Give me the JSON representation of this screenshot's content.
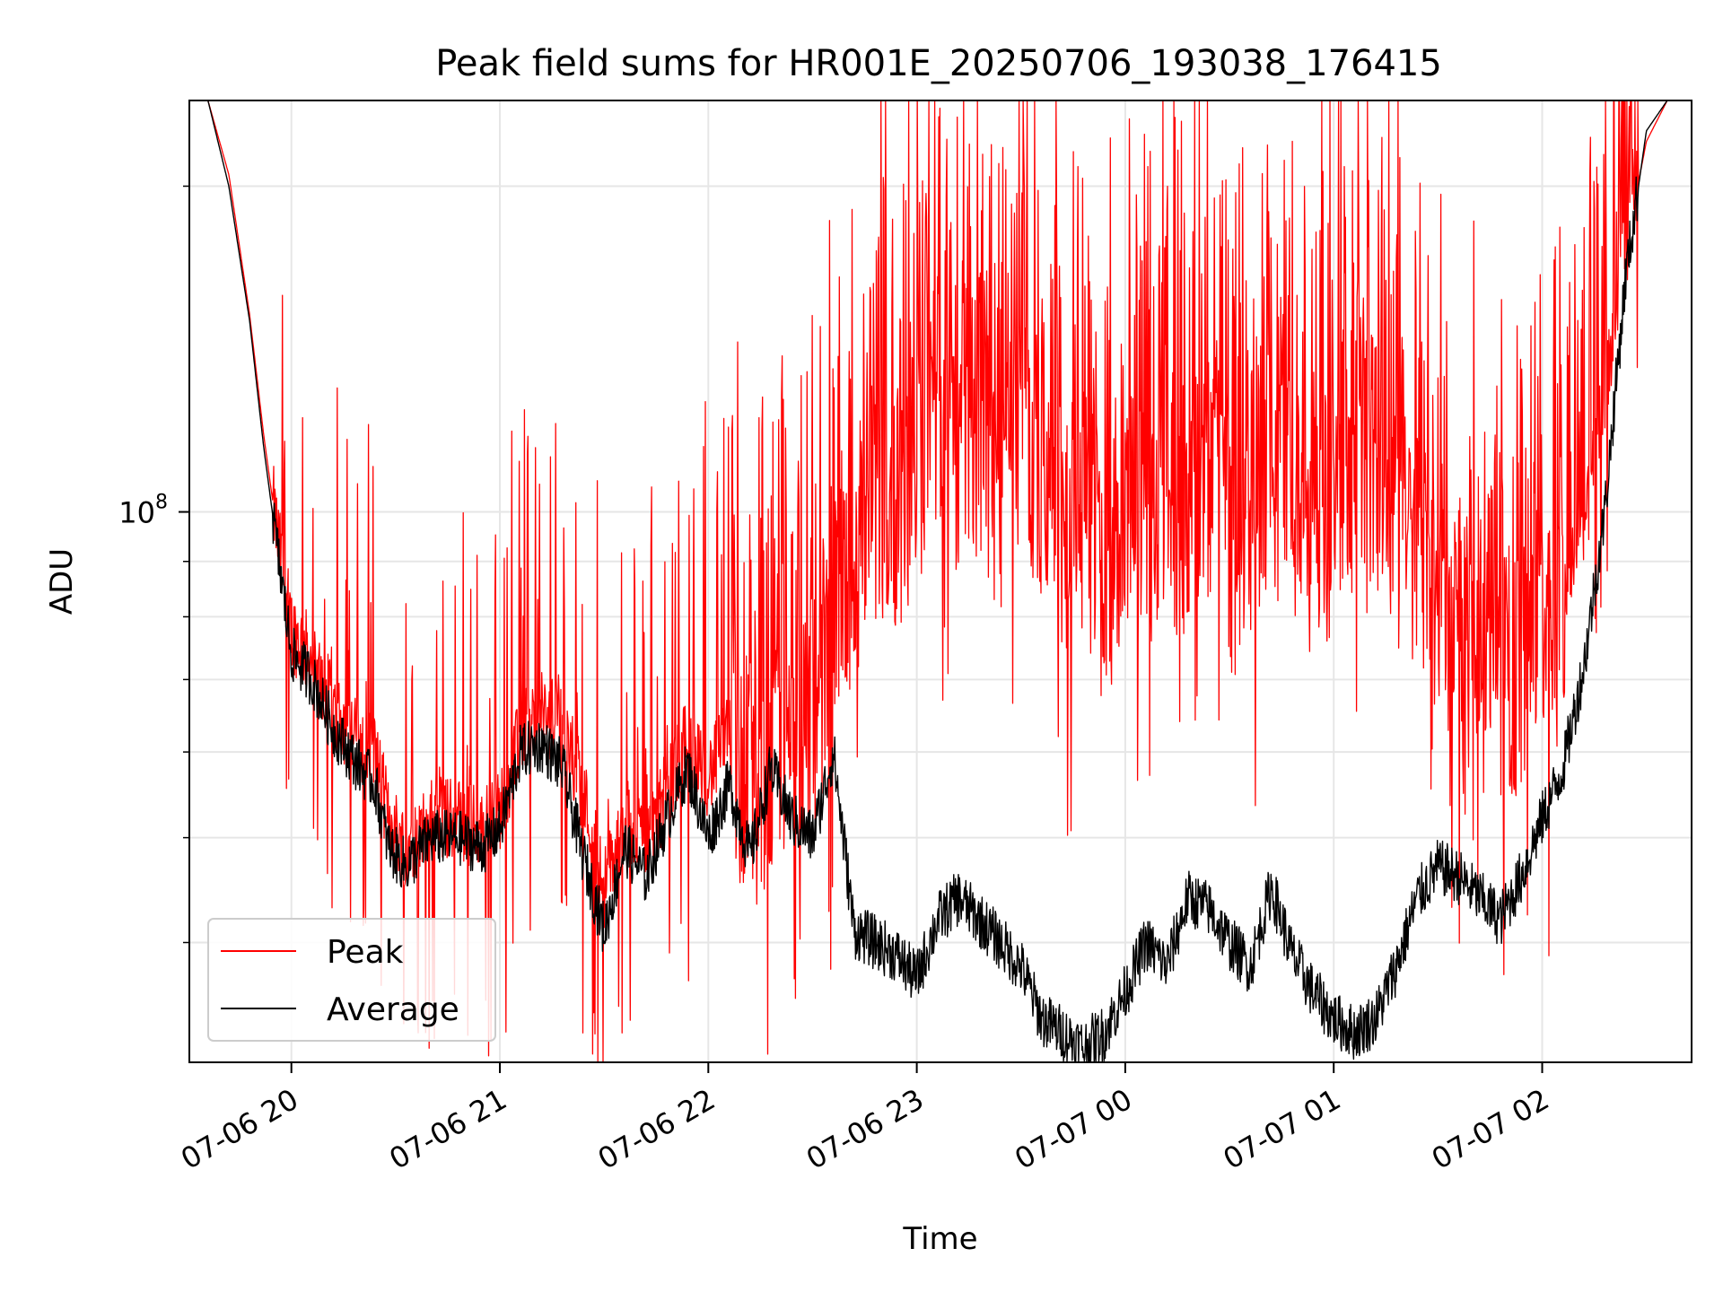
{
  "chart_data": {
    "type": "line",
    "title": "Peak field sums for HR001E_20250706_193038_176415",
    "xlabel": "Time",
    "ylabel": "ADU",
    "x_range": [
      "2025-07-06T19:30:38",
      "2025-07-07T02:43:00"
    ],
    "x_ticks": [
      "07-06 20",
      "07-06 21",
      "07-06 22",
      "07-06 23",
      "07-07 00",
      "07-07 01",
      "07-07 02"
    ],
    "y_scale": "log",
    "y_range": [
      31000000,
      240000000
    ],
    "y_major_ticks": [
      {
        "value": 100000000,
        "label": "10",
        "exp": "8"
      }
    ],
    "y_minor_ticks": [
      40000000,
      50000000,
      60000000,
      70000000,
      80000000,
      90000000,
      200000000
    ],
    "grid": true,
    "legend": "lower-left",
    "series": [
      {
        "name": "Peak",
        "color": "#ff0000",
        "points": [
          [
            "2025-07-06T19:30:38",
            240000000
          ],
          [
            "2025-07-06T19:36:00",
            240000000
          ],
          [
            "2025-07-06T19:42:00",
            205000000
          ],
          [
            "2025-07-06T19:48:00",
            152000000
          ],
          [
            "2025-07-06T19:52:00",
            118000000
          ],
          [
            "2025-07-06T19:56:00",
            95000000
          ],
          [
            "2025-07-06T20:00:00",
            78000000
          ],
          [
            "2025-07-06T20:06:00",
            73000000
          ],
          [
            "2025-07-06T20:12:00",
            66000000
          ],
          [
            "2025-07-06T20:18:00",
            62000000
          ],
          [
            "2025-07-06T20:24:00",
            60000000
          ],
          [
            "2025-07-06T20:28:00",
            52000000
          ],
          [
            "2025-07-06T20:33:00",
            49000000
          ],
          [
            "2025-07-06T20:40:00",
            52000000
          ],
          [
            "2025-07-06T20:48:00",
            52000000
          ],
          [
            "2025-07-06T20:55:00",
            51000000
          ],
          [
            "2025-07-06T21:00:00",
            53000000
          ],
          [
            "2025-07-06T21:06:00",
            62000000
          ],
          [
            "2025-07-06T21:12:00",
            65000000
          ],
          [
            "2025-07-06T21:18:00",
            64000000
          ],
          [
            "2025-07-06T21:24:00",
            55000000
          ],
          [
            "2025-07-06T21:30:00",
            45000000
          ],
          [
            "2025-07-06T21:36:00",
            52000000
          ],
          [
            "2025-07-06T21:42:00",
            50000000
          ],
          [
            "2025-07-06T21:48:00",
            55000000
          ],
          [
            "2025-07-06T21:54:00",
            62000000
          ],
          [
            "2025-07-06T22:00:00",
            57000000
          ],
          [
            "2025-07-06T22:06:00",
            62000000
          ],
          [
            "2025-07-06T22:12:00",
            56000000
          ],
          [
            "2025-07-06T22:18:00",
            58000000
          ],
          [
            "2025-07-06T22:24:00",
            60000000
          ],
          [
            "2025-07-06T22:30:00",
            67000000
          ],
          [
            "2025-07-06T22:36:00",
            78000000
          ],
          [
            "2025-07-06T22:42:00",
            90000000
          ],
          [
            "2025-07-06T22:48:00",
            105000000
          ],
          [
            "2025-07-06T22:54:00",
            98000000
          ],
          [
            "2025-07-06T23:00:00",
            110000000
          ],
          [
            "2025-07-06T23:06:00",
            128000000
          ],
          [
            "2025-07-06T23:12:00",
            115000000
          ],
          [
            "2025-07-06T23:18:00",
            120000000
          ],
          [
            "2025-07-06T23:24:00",
            105000000
          ],
          [
            "2025-07-06T23:30:00",
            118000000
          ],
          [
            "2025-07-06T23:36:00",
            110000000
          ],
          [
            "2025-07-06T23:42:00",
            95000000
          ],
          [
            "2025-07-06T23:48:00",
            100000000
          ],
          [
            "2025-07-06T23:54:00",
            92000000
          ],
          [
            "2025-07-07T00:00:00",
            100000000
          ],
          [
            "2025-07-07T00:06:00",
            95000000
          ],
          [
            "2025-07-07T00:12:00",
            104000000
          ],
          [
            "2025-07-07T00:18:00",
            98000000
          ],
          [
            "2025-07-07T00:24:00",
            108000000
          ],
          [
            "2025-07-07T00:30:00",
            90000000
          ],
          [
            "2025-07-07T00:36:00",
            102000000
          ],
          [
            "2025-07-07T00:42:00",
            112000000
          ],
          [
            "2025-07-07T00:48:00",
            100000000
          ],
          [
            "2025-07-07T00:54:00",
            96000000
          ],
          [
            "2025-07-07T01:00:00",
            108000000
          ],
          [
            "2025-07-07T01:06:00",
            118000000
          ],
          [
            "2025-07-07T01:12:00",
            110000000
          ],
          [
            "2025-07-07T01:18:00",
            98000000
          ],
          [
            "2025-07-07T01:24:00",
            90000000
          ],
          [
            "2025-07-07T01:30:00",
            84000000
          ],
          [
            "2025-07-07T01:36:00",
            78000000
          ],
          [
            "2025-07-07T01:42:00",
            72000000
          ],
          [
            "2025-07-07T01:48:00",
            70000000
          ],
          [
            "2025-07-07T01:54:00",
            73000000
          ],
          [
            "2025-07-07T02:00:00",
            78000000
          ],
          [
            "2025-07-07T02:06:00",
            80000000
          ],
          [
            "2025-07-07T02:12:00",
            95000000
          ],
          [
            "2025-07-07T02:18:00",
            130000000
          ],
          [
            "2025-07-07T02:24:00",
            175000000
          ],
          [
            "2025-07-07T02:30:00",
            220000000
          ],
          [
            "2025-07-07T02:36:00",
            240000000
          ],
          [
            "2025-07-07T02:43:00",
            240000000
          ]
        ]
      },
      {
        "name": "Average",
        "color": "#000000",
        "points": [
          [
            "2025-07-06T19:30:38",
            240000000
          ],
          [
            "2025-07-06T19:36:00",
            240000000
          ],
          [
            "2025-07-06T19:42:00",
            200000000
          ],
          [
            "2025-07-06T19:48:00",
            150000000
          ],
          [
            "2025-07-06T19:52:00",
            115000000
          ],
          [
            "2025-07-06T19:56:00",
            92000000
          ],
          [
            "2025-07-06T20:00:00",
            74000000
          ],
          [
            "2025-07-06T20:06:00",
            70000000
          ],
          [
            "2025-07-06T20:12:00",
            63000000
          ],
          [
            "2025-07-06T20:18:00",
            59000000
          ],
          [
            "2025-07-06T20:24:00",
            56000000
          ],
          [
            "2025-07-06T20:28:00",
            49000000
          ],
          [
            "2025-07-06T20:33:00",
            47000000
          ],
          [
            "2025-07-06T20:40:00",
            50000000
          ],
          [
            "2025-07-06T20:48:00",
            50000000
          ],
          [
            "2025-07-06T20:55:00",
            49000000
          ],
          [
            "2025-07-06T21:00:00",
            51000000
          ],
          [
            "2025-07-06T21:06:00",
            60000000
          ],
          [
            "2025-07-06T21:12:00",
            61000000
          ],
          [
            "2025-07-06T21:18:00",
            58000000
          ],
          [
            "2025-07-06T21:24:00",
            48000000
          ],
          [
            "2025-07-06T21:30:00",
            41000000
          ],
          [
            "2025-07-06T21:36:00",
            49000000
          ],
          [
            "2025-07-06T21:42:00",
            46000000
          ],
          [
            "2025-07-06T21:48:00",
            52000000
          ],
          [
            "2025-07-06T21:54:00",
            58000000
          ],
          [
            "2025-07-06T22:00:00",
            50000000
          ],
          [
            "2025-07-06T22:06:00",
            56000000
          ],
          [
            "2025-07-06T22:12:00",
            48000000
          ],
          [
            "2025-07-06T22:18:00",
            58000000
          ],
          [
            "2025-07-06T22:24:00",
            52000000
          ],
          [
            "2025-07-06T22:30:00",
            50000000
          ],
          [
            "2025-07-06T22:36:00",
            60000000
          ],
          [
            "2025-07-06T22:42:00",
            41000000
          ],
          [
            "2025-07-06T22:48:00",
            40000000
          ],
          [
            "2025-07-06T22:54:00",
            39000000
          ],
          [
            "2025-07-06T23:00:00",
            37000000
          ],
          [
            "2025-07-06T23:06:00",
            42000000
          ],
          [
            "2025-07-06T23:12:00",
            44000000
          ],
          [
            "2025-07-06T23:18:00",
            42000000
          ],
          [
            "2025-07-06T23:24:00",
            40000000
          ],
          [
            "2025-07-06T23:30:00",
            38000000
          ],
          [
            "2025-07-06T23:36:00",
            34000000
          ],
          [
            "2025-07-06T23:42:00",
            33000000
          ],
          [
            "2025-07-06T23:48:00",
            32000000
          ],
          [
            "2025-07-06T23:54:00",
            33000000
          ],
          [
            "2025-07-07T00:00:00",
            36000000
          ],
          [
            "2025-07-07T00:06:00",
            40000000
          ],
          [
            "2025-07-07T00:12:00",
            38000000
          ],
          [
            "2025-07-07T00:18:00",
            44000000
          ],
          [
            "2025-07-07T00:24:00",
            43000000
          ],
          [
            "2025-07-07T00:30:00",
            40000000
          ],
          [
            "2025-07-07T00:36:00",
            38000000
          ],
          [
            "2025-07-07T00:42:00",
            45000000
          ],
          [
            "2025-07-07T00:48:00",
            39000000
          ],
          [
            "2025-07-07T00:54:00",
            36000000
          ],
          [
            "2025-07-07T01:00:00",
            34000000
          ],
          [
            "2025-07-07T01:06:00",
            33000000
          ],
          [
            "2025-07-07T01:12:00",
            34000000
          ],
          [
            "2025-07-07T01:18:00",
            38000000
          ],
          [
            "2025-07-07T01:24:00",
            44000000
          ],
          [
            "2025-07-07T01:30:00",
            47000000
          ],
          [
            "2025-07-07T01:36:00",
            46000000
          ],
          [
            "2025-07-07T01:42:00",
            44000000
          ],
          [
            "2025-07-07T01:48:00",
            42000000
          ],
          [
            "2025-07-07T01:54:00",
            46000000
          ],
          [
            "2025-07-07T02:00:00",
            52000000
          ],
          [
            "2025-07-07T02:06:00",
            58000000
          ],
          [
            "2025-07-07T02:12:00",
            72000000
          ],
          [
            "2025-07-07T02:18:00",
            100000000
          ],
          [
            "2025-07-07T02:24:00",
            165000000
          ],
          [
            "2025-07-07T02:30:00",
            225000000
          ],
          [
            "2025-07-07T02:36:00",
            240000000
          ],
          [
            "2025-07-07T02:43:00",
            240000000
          ]
        ]
      }
    ]
  }
}
